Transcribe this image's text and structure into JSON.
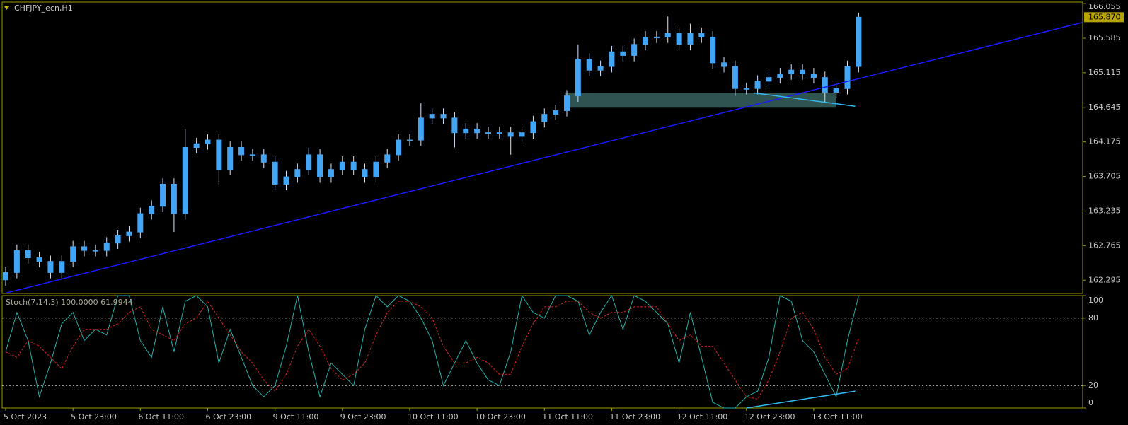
{
  "chart_data": [
    {
      "type": "candlestick",
      "title": "CHFJPY_ecn,H1",
      "categories": [
        "5 Oct 2023",
        null,
        null,
        null,
        null,
        null,
        "5 Oct 23:00",
        null,
        null,
        null,
        null,
        null,
        "6 Oct 11:00",
        null,
        null,
        null,
        null,
        null,
        "6 Oct 23:00",
        null,
        null,
        null,
        null,
        null,
        "9 Oct 11:00",
        null,
        null,
        null,
        null,
        null,
        "9 Oct 23:00",
        null,
        null,
        null,
        null,
        null,
        "10 Oct 11:00",
        null,
        null,
        null,
        null,
        null,
        "10 Oct 23:00",
        null,
        null,
        null,
        null,
        null,
        "11 Oct 11:00",
        null,
        null,
        null,
        null,
        null,
        "11 Oct 23:00",
        null,
        null,
        null,
        null,
        null,
        "12 Oct 11:00",
        null,
        null,
        null,
        null,
        null,
        "12 Oct 23:00",
        null,
        null,
        null,
        null,
        null,
        "13 Oct 11:00",
        null,
        null,
        null,
        null
      ],
      "open": [
        162.3,
        162.4,
        162.7,
        162.6,
        162.55,
        162.4,
        162.55,
        162.75,
        162.7,
        162.7,
        162.8,
        162.9,
        162.95,
        163.2,
        163.3,
        163.6,
        163.2,
        164.1,
        164.15,
        164.2,
        163.8,
        164.1,
        164.0,
        164.0,
        163.9,
        163.6,
        163.7,
        163.8,
        164.0,
        163.7,
        163.8,
        163.9,
        163.8,
        163.7,
        163.9,
        164.0,
        164.2,
        164.2,
        164.5,
        164.55,
        164.5,
        164.3,
        164.35,
        164.3,
        164.3,
        164.3,
        164.25,
        164.3,
        164.45,
        164.55,
        164.6,
        164.8,
        165.3,
        165.15,
        165.2,
        165.4,
        165.35,
        165.5,
        165.6,
        165.6,
        165.65,
        165.5,
        165.65,
        165.6,
        165.25,
        165.2,
        164.9,
        164.9,
        165.0,
        165.05,
        165.1,
        165.15,
        165.1,
        165.05,
        164.85,
        164.9,
        165.2
      ],
      "high": [
        162.48,
        162.78,
        162.78,
        162.68,
        162.63,
        162.63,
        162.83,
        162.83,
        162.78,
        162.88,
        162.98,
        163.03,
        163.28,
        163.38,
        163.68,
        163.68,
        164.35,
        164.23,
        164.28,
        164.28,
        164.18,
        164.18,
        164.08,
        164.08,
        163.98,
        163.78,
        163.88,
        164.1,
        164.08,
        163.88,
        163.98,
        163.98,
        163.88,
        163.98,
        164.08,
        164.28,
        164.28,
        164.7,
        164.63,
        164.63,
        164.58,
        164.43,
        164.43,
        164.38,
        164.38,
        164.38,
        164.38,
        164.53,
        164.63,
        164.68,
        164.88,
        165.5,
        165.38,
        165.28,
        165.48,
        165.48,
        165.58,
        165.68,
        165.68,
        165.88,
        165.73,
        165.78,
        165.73,
        165.68,
        165.33,
        165.28,
        164.98,
        165.08,
        165.13,
        165.18,
        165.23,
        165.23,
        165.18,
        165.13,
        164.98,
        165.28,
        165.93
      ],
      "low": [
        162.22,
        162.32,
        162.52,
        162.47,
        162.32,
        162.32,
        162.47,
        162.62,
        162.62,
        162.62,
        162.72,
        162.82,
        162.87,
        163.12,
        163.22,
        162.95,
        163.12,
        164.02,
        164.07,
        163.6,
        163.72,
        163.92,
        163.92,
        163.82,
        163.52,
        163.52,
        163.62,
        163.72,
        163.62,
        163.62,
        163.72,
        163.72,
        163.62,
        163.62,
        163.82,
        163.92,
        164.12,
        164.12,
        164.42,
        164.42,
        164.1,
        164.22,
        164.22,
        164.22,
        164.22,
        164.0,
        164.17,
        164.22,
        164.37,
        164.47,
        164.52,
        164.72,
        165.07,
        165.07,
        165.12,
        165.27,
        165.27,
        165.42,
        165.52,
        165.52,
        165.42,
        165.42,
        165.52,
        165.17,
        165.12,
        164.8,
        164.82,
        164.82,
        164.92,
        164.97,
        165.02,
        165.02,
        164.97,
        164.72,
        164.77,
        164.82,
        165.12
      ],
      "close": [
        162.4,
        162.7,
        162.6,
        162.55,
        162.4,
        162.55,
        162.75,
        162.7,
        162.7,
        162.8,
        162.9,
        162.95,
        163.2,
        163.3,
        163.6,
        163.2,
        164.1,
        164.15,
        164.2,
        163.8,
        164.1,
        164.0,
        164.0,
        163.9,
        163.6,
        163.7,
        163.8,
        164.0,
        163.7,
        163.8,
        163.9,
        163.8,
        163.7,
        163.9,
        164.0,
        164.2,
        164.2,
        164.5,
        164.55,
        164.5,
        164.3,
        164.35,
        164.3,
        164.3,
        164.3,
        164.25,
        164.3,
        164.45,
        164.55,
        164.6,
        164.8,
        165.3,
        165.15,
        165.2,
        165.4,
        165.35,
        165.5,
        165.6,
        165.6,
        165.65,
        165.5,
        165.65,
        165.6,
        165.25,
        165.2,
        164.9,
        164.9,
        165.0,
        165.05,
        165.1,
        165.15,
        165.1,
        165.05,
        164.85,
        164.9,
        165.2,
        165.87
      ],
      "up_color": "#42a5f5",
      "down_color": "#42a5f5",
      "wick_color": "#cfe3ff",
      "ylim": [
        162.115,
        166.075
      ],
      "yticks": [
        {
          "value": 166.055,
          "label": "166.055"
        },
        {
          "value": 165.585,
          "label": "165.585"
        },
        {
          "value": 165.115,
          "label": "165.115"
        },
        {
          "value": 164.645,
          "label": "164.645"
        },
        {
          "value": 164.175,
          "label": "164.175"
        },
        {
          "value": 163.705,
          "label": "163.705"
        },
        {
          "value": 163.235,
          "label": "163.235"
        },
        {
          "value": 162.765,
          "label": "162.765"
        },
        {
          "value": 162.295,
          "label": "162.295"
        }
      ],
      "current_price": {
        "value": 165.87,
        "label": "165.870",
        "color": "#b8a400"
      },
      "zones": [
        {
          "color": "#2f5350",
          "x": [
            49.9,
            74.0
          ],
          "y": [
            164.64,
            164.84
          ]
        }
      ],
      "trendlines": [
        {
          "color": "#1a1aff",
          "x": [
            0,
            96.2
          ],
          "y": [
            162.12,
            165.8
          ]
        },
        {
          "color": "#33b8f0",
          "x": [
            66.7,
            75.7
          ],
          "y": [
            164.84,
            164.66
          ]
        }
      ]
    },
    {
      "type": "line",
      "title": "Stoch(7,14,3) 100.0000 61.9944",
      "series": [
        {
          "color": "#20b2aa",
          "dash": false,
          "values": [
            50,
            85,
            60,
            10,
            40,
            75,
            85,
            60,
            70,
            65,
            100,
            100,
            60,
            45,
            90,
            50,
            95,
            100,
            90,
            40,
            70,
            45,
            20,
            10,
            20,
            55,
            100,
            50,
            10,
            40,
            30,
            20,
            70,
            100,
            90,
            100,
            95,
            80,
            60,
            20,
            40,
            60,
            40,
            25,
            20,
            50,
            100,
            85,
            80,
            100,
            100,
            95,
            65,
            85,
            100,
            70,
            100,
            95,
            85,
            75,
            40,
            85,
            45,
            5,
            0,
            0,
            10,
            15,
            45,
            100,
            95,
            60,
            50,
            30,
            10,
            60,
            100
          ]
        },
        {
          "color": "#e02020",
          "dash": true,
          "values": [
            50,
            45,
            60,
            55,
            45,
            35,
            55,
            70,
            70,
            70,
            75,
            85,
            90,
            70,
            65,
            60,
            75,
            80,
            95,
            80,
            65,
            50,
            40,
            25,
            15,
            30,
            55,
            70,
            55,
            35,
            25,
            30,
            40,
            65,
            85,
            95,
            95,
            90,
            80,
            55,
            40,
            40,
            45,
            40,
            30,
            30,
            55,
            75,
            90,
            90,
            95,
            95,
            85,
            80,
            85,
            85,
            90,
            90,
            90,
            75,
            60,
            65,
            55,
            55,
            40,
            25,
            10,
            8,
            25,
            50,
            80,
            85,
            70,
            45,
            30,
            35,
            62
          ]
        }
      ],
      "ylim": [
        0,
        100
      ],
      "yticks": [
        0,
        20,
        80,
        100
      ],
      "levels": [
        20,
        80
      ],
      "trendlines": [
        {
          "color": "#33b8f0",
          "x": [
            66.0,
            75.7
          ],
          "y": [
            0,
            15
          ]
        }
      ]
    }
  ]
}
